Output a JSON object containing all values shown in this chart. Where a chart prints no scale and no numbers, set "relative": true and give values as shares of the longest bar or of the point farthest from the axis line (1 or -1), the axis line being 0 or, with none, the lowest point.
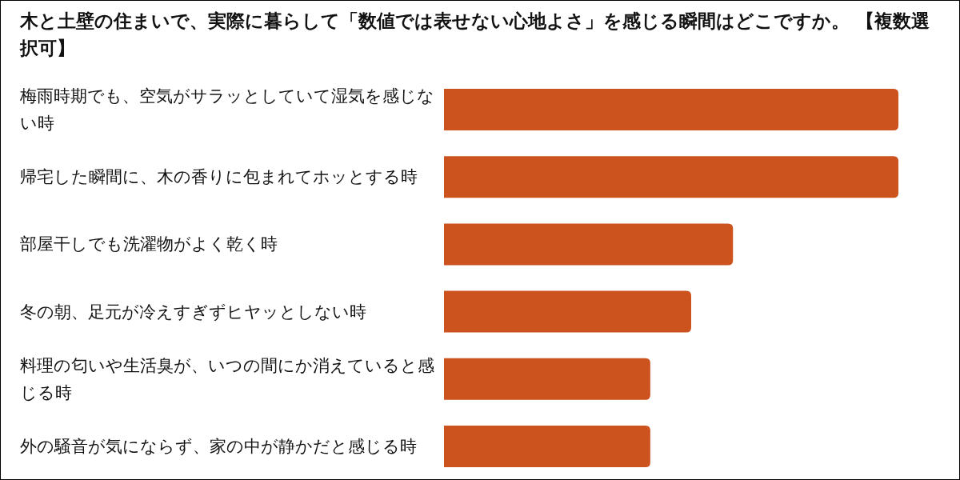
{
  "chart_data": {
    "type": "bar",
    "orientation": "horizontal",
    "relative": true,
    "title": "木と土壁の住まいで、実際に暮らして「数値では表せない心地よさ」を感じる瞬間はどこですか。 【複数選択可】",
    "categories": [
      "梅雨時期でも、空気がサラッとしていて湿気を感じない時",
      "帰宅した瞬間に、木の香りに包まれてホッとする時",
      "部屋干しでも洗濯物がよく乾く時",
      "冬の朝、足元が冷えすぎずヒヤッとしない時",
      "料理の匂いや生活臭が、いつの間にか消えていると感じる時",
      "外の騒音が気にならず、家の中が静かだと感じる時"
    ],
    "values": [
      1,
      1,
      0.636,
      0.544,
      0.454,
      0.454
    ],
    "color": "#cc521e"
  }
}
